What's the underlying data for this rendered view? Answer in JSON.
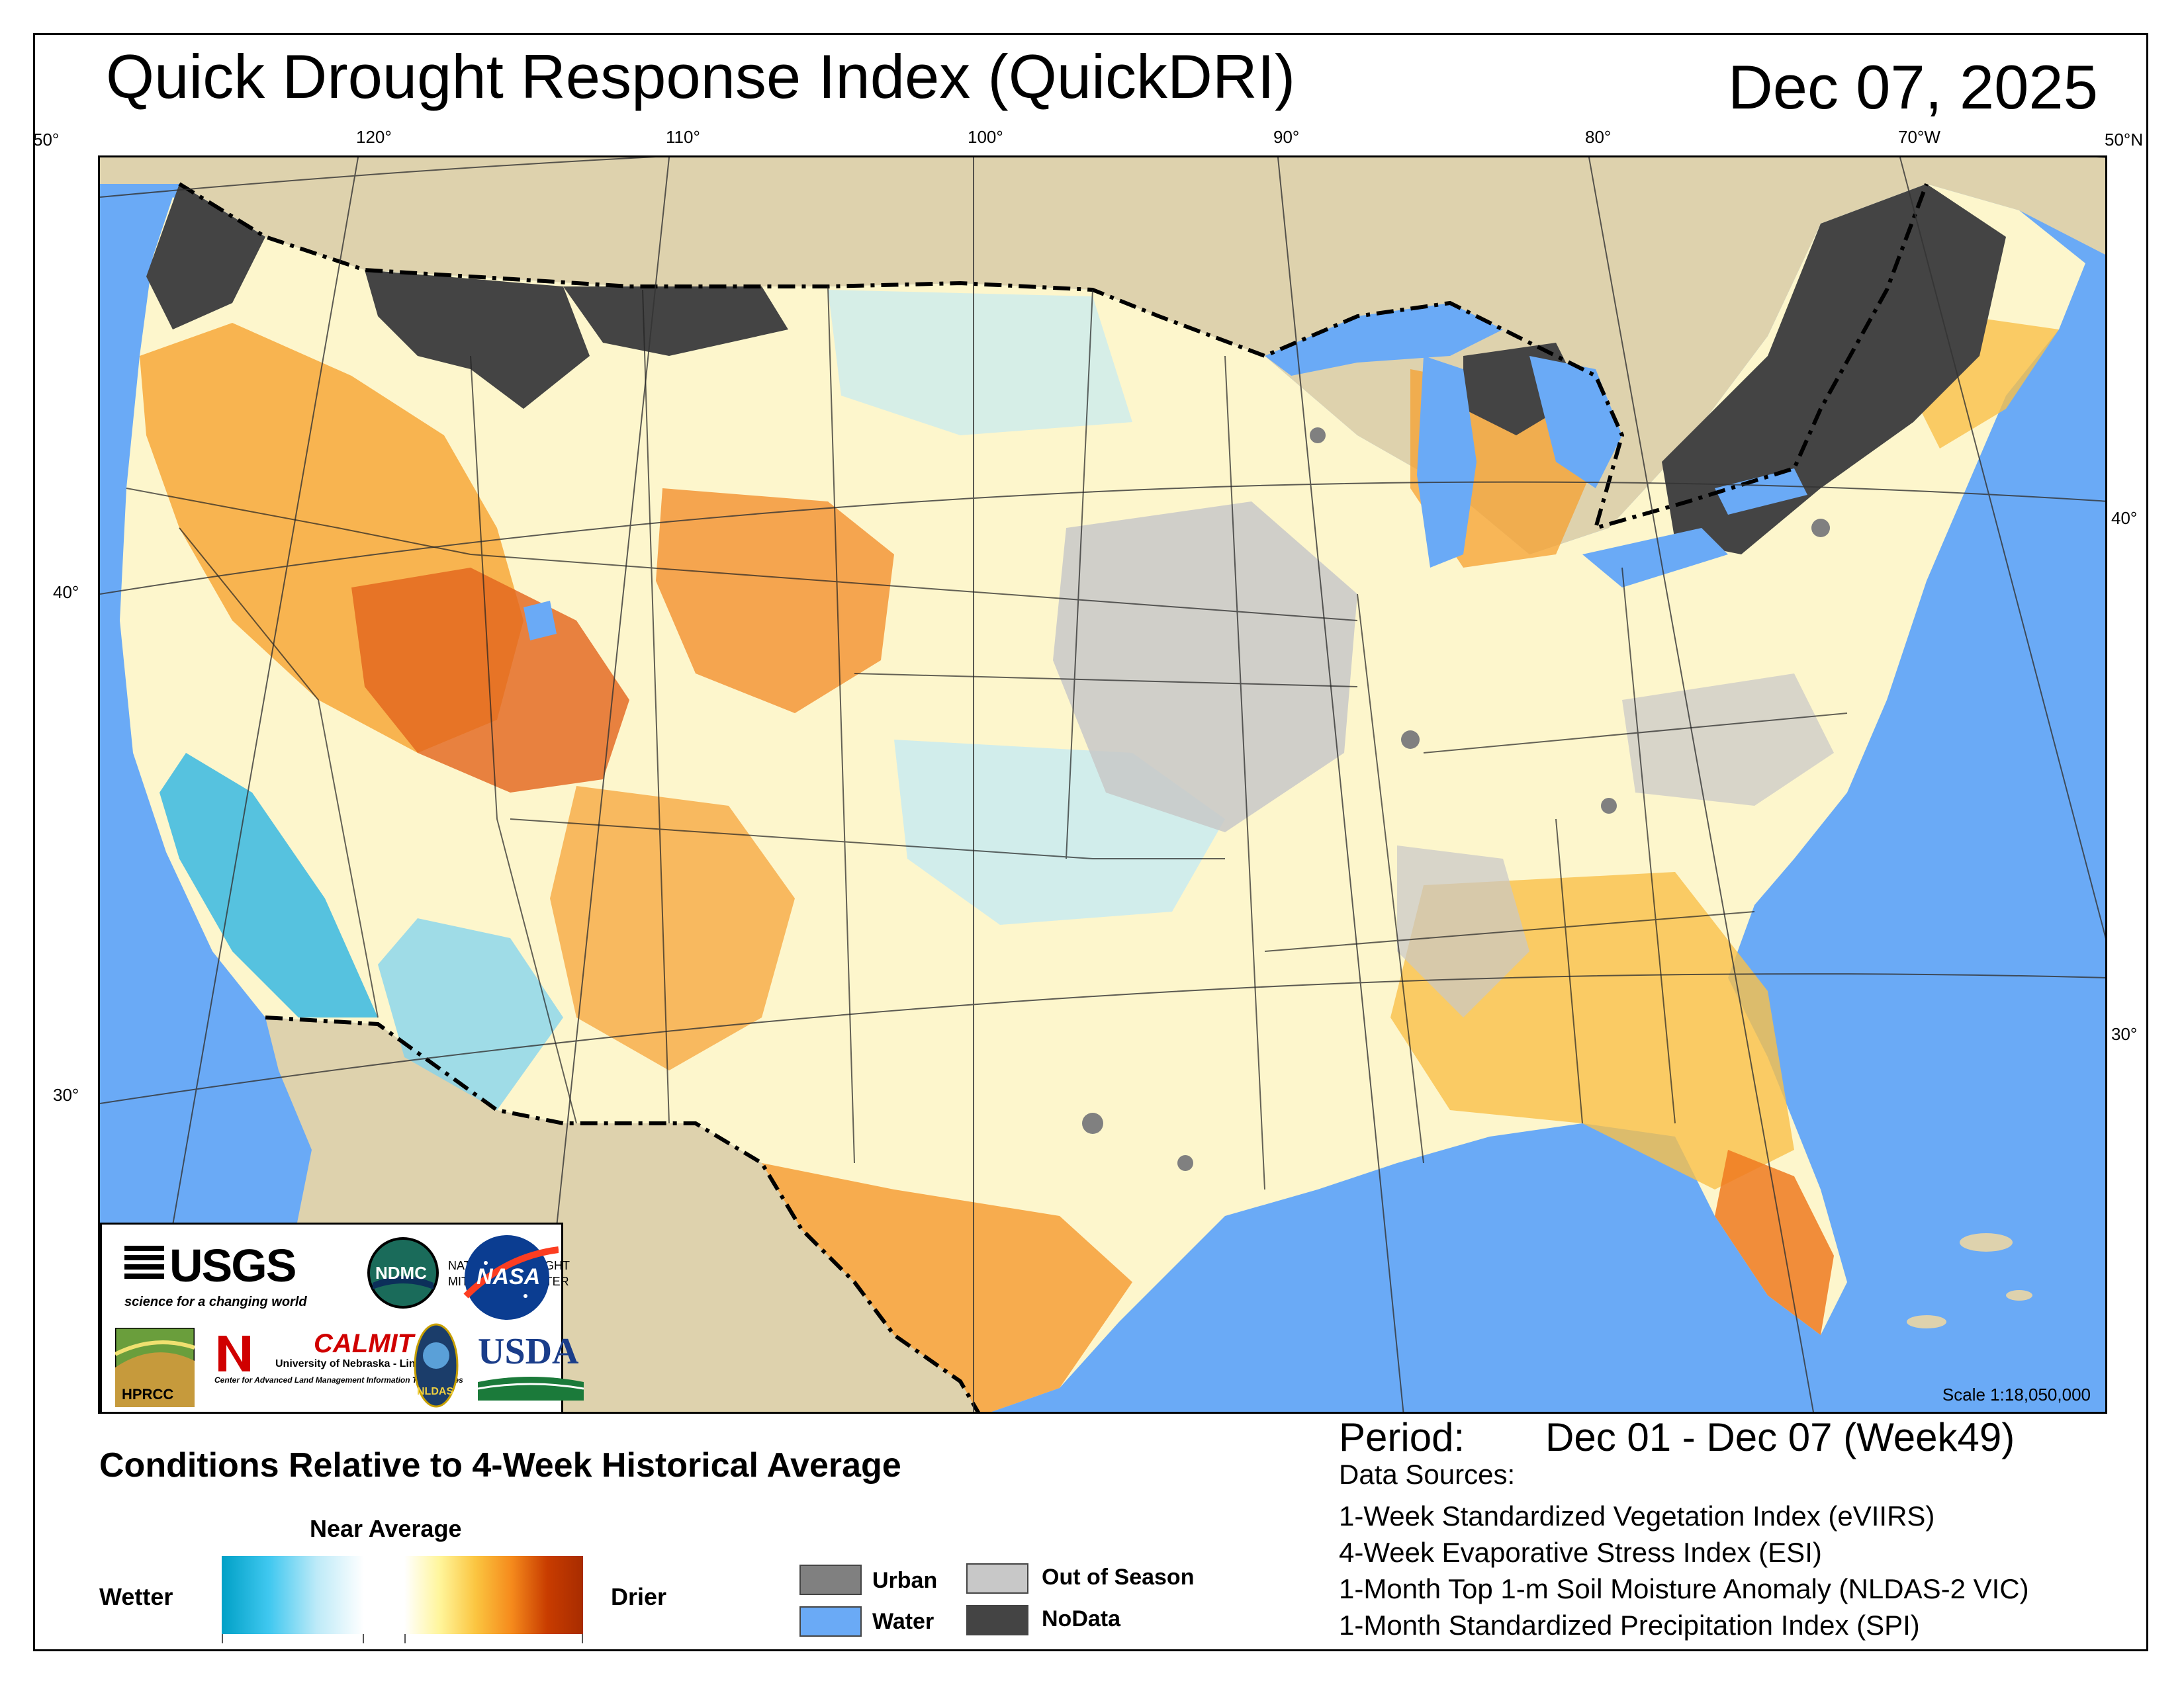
{
  "header": {
    "title": "Quick Drought Response Index (QuickDRI)",
    "date": "Dec 07, 2025"
  },
  "graticule": {
    "longitude_labels": [
      "120°",
      "110°",
      "100°",
      "90°",
      "80°",
      "70°W"
    ],
    "latitude_labels_left": [
      "50°",
      "40°",
      "30°"
    ],
    "latitude_labels_right": [
      "50°N",
      "40°",
      "30°"
    ]
  },
  "map": {
    "scale": "Scale 1:18,050,000",
    "colors": {
      "ocean": "#6aaaf6",
      "land_outside": "#ded2ad",
      "nodata": "#444444",
      "out_of_season": "#c8c8c8",
      "urban": "#808080"
    }
  },
  "logos": {
    "usgs": {
      "name": "USGS",
      "tagline": "science for a changing world"
    },
    "ndmc": {
      "name": "NDMC",
      "line1": "NATIONAL DROUGHT",
      "line2": "MITIGATION CENTER"
    },
    "nasa": {
      "name": "NASA"
    },
    "hprcc": {
      "name": "HPRCC"
    },
    "calmit": {
      "name": "CALMIT",
      "line1": "University of Nebraska - Lincoln",
      "line2": "Center for Advanced Land Management Information Technologies"
    },
    "nldas": {
      "name": "NLDAS"
    },
    "usda": {
      "name": "USDA"
    }
  },
  "legend": {
    "title": "Conditions Relative to 4-Week Historical Average",
    "near_average": "Near Average",
    "wetter": "Wetter",
    "drier": "Drier",
    "wet_colors": [
      "#00a0c6",
      "#40c8f0",
      "#bdeaf8",
      "#ffffff"
    ],
    "dry_colors": [
      "#ffffff",
      "#fff59a",
      "#fbc540",
      "#f58a1c",
      "#c83c00",
      "#a82c00"
    ],
    "categories": [
      {
        "label": "Urban",
        "color": "#808080"
      },
      {
        "label": "Water",
        "color": "#6aaaf6"
      },
      {
        "label": "Out of Season",
        "color": "#c8c8c8"
      },
      {
        "label": "NoData",
        "color": "#444444"
      }
    ]
  },
  "info": {
    "period_label": "Period:",
    "period_value": "Dec 01 - Dec 07 (Week49)",
    "sources_label": "Data Sources:",
    "sources": [
      "1-Week Standardized Vegetation Index (eVIIRS)",
      "4-Week Evaporative Stress Index (ESI)",
      "1-Month Top 1-m Soil Moisture Anomaly (NLDAS-2 VIC)",
      "1-Month Standardized Precipitation Index (SPI)"
    ]
  }
}
